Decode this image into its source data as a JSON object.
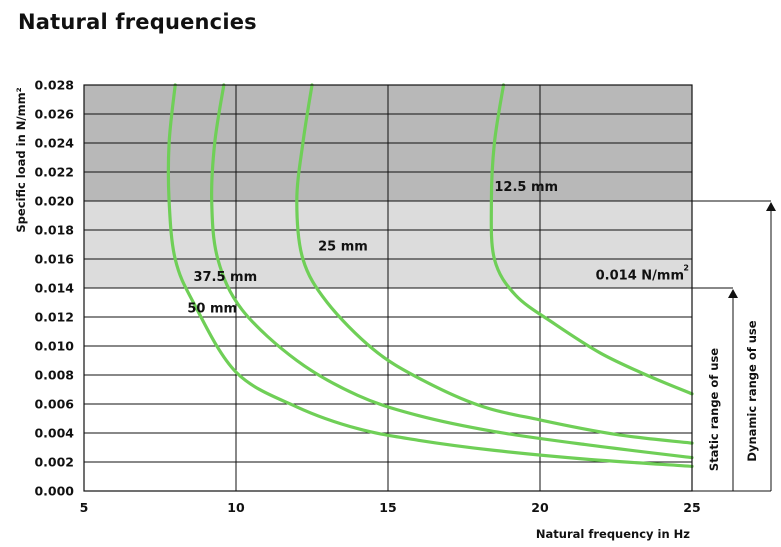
{
  "chart_data": {
    "type": "line",
    "title": "Natural frequencies",
    "xlabel": "Natural frequency in Hz",
    "ylabel": "Specific load in N/mm²",
    "xlim": [
      5,
      25
    ],
    "ylim": [
      0,
      0.028
    ],
    "x_ticks": [
      "5",
      "10",
      "15",
      "20",
      "25"
    ],
    "y_ticks": [
      "0.000",
      "0.002",
      "0.004",
      "0.006",
      "0.008",
      "0.010",
      "0.012",
      "0.014",
      "0.016",
      "0.018",
      "0.020",
      "0.022",
      "0.024",
      "0.026",
      "0.028"
    ],
    "grid": true,
    "bands": [
      {
        "from": 0.014,
        "to": 0.02,
        "color": "#dcdcdc"
      },
      {
        "from": 0.02,
        "to": 0.028,
        "color": "#b8b8b8"
      }
    ],
    "series": [
      {
        "name": "12.5 mm",
        "color": "#6fcf57",
        "points": [
          [
            18.8,
            0.028
          ],
          [
            18.5,
            0.024
          ],
          [
            18.4,
            0.02
          ],
          [
            18.5,
            0.016
          ],
          [
            19.2,
            0.0135
          ],
          [
            20.5,
            0.0115
          ],
          [
            22,
            0.0095
          ],
          [
            23.5,
            0.008
          ],
          [
            25,
            0.0067
          ]
        ]
      },
      {
        "name": "25 mm",
        "color": "#6fcf57",
        "points": [
          [
            12.5,
            0.028
          ],
          [
            12.2,
            0.024
          ],
          [
            12.0,
            0.02
          ],
          [
            12.2,
            0.016
          ],
          [
            13,
            0.013
          ],
          [
            14.5,
            0.0098
          ],
          [
            16,
            0.0078
          ],
          [
            18,
            0.0059
          ],
          [
            20,
            0.0049
          ],
          [
            22.5,
            0.0039
          ],
          [
            25,
            0.0033
          ]
        ]
      },
      {
        "name": "37.5 mm",
        "color": "#6fcf57",
        "points": [
          [
            9.6,
            0.028
          ],
          [
            9.3,
            0.024
          ],
          [
            9.2,
            0.02
          ],
          [
            9.4,
            0.016
          ],
          [
            10.2,
            0.0125
          ],
          [
            12,
            0.009
          ],
          [
            14,
            0.0066
          ],
          [
            16,
            0.0052
          ],
          [
            18.5,
            0.0041
          ],
          [
            21.5,
            0.0032
          ],
          [
            25,
            0.0023
          ]
        ]
      },
      {
        "name": "50 mm",
        "color": "#6fcf57",
        "points": [
          [
            8.0,
            0.028
          ],
          [
            7.8,
            0.024
          ],
          [
            7.8,
            0.02
          ],
          [
            8.0,
            0.016
          ],
          [
            8.6,
            0.013
          ],
          [
            10,
            0.0082
          ],
          [
            12,
            0.0058
          ],
          [
            14,
            0.0043
          ],
          [
            16,
            0.0035
          ],
          [
            18.5,
            0.0028
          ],
          [
            21.5,
            0.0022
          ],
          [
            25,
            0.0017
          ]
        ]
      }
    ],
    "annotations": {
      "static_level": "0.014 N/mm",
      "static_level_sup": "2",
      "static_range": "Static range of use",
      "dynamic_range": "Dynamic range of use"
    },
    "curve_labels": [
      {
        "text": "12.5 mm",
        "x": 18.5,
        "y": 0.0207
      },
      {
        "text": "25 mm",
        "x": 12.7,
        "y": 0.0166
      },
      {
        "text": "37.5 mm",
        "x": 8.6,
        "y": 0.0145
      },
      {
        "text": "50 mm",
        "x": 8.4,
        "y": 0.0123
      }
    ]
  }
}
